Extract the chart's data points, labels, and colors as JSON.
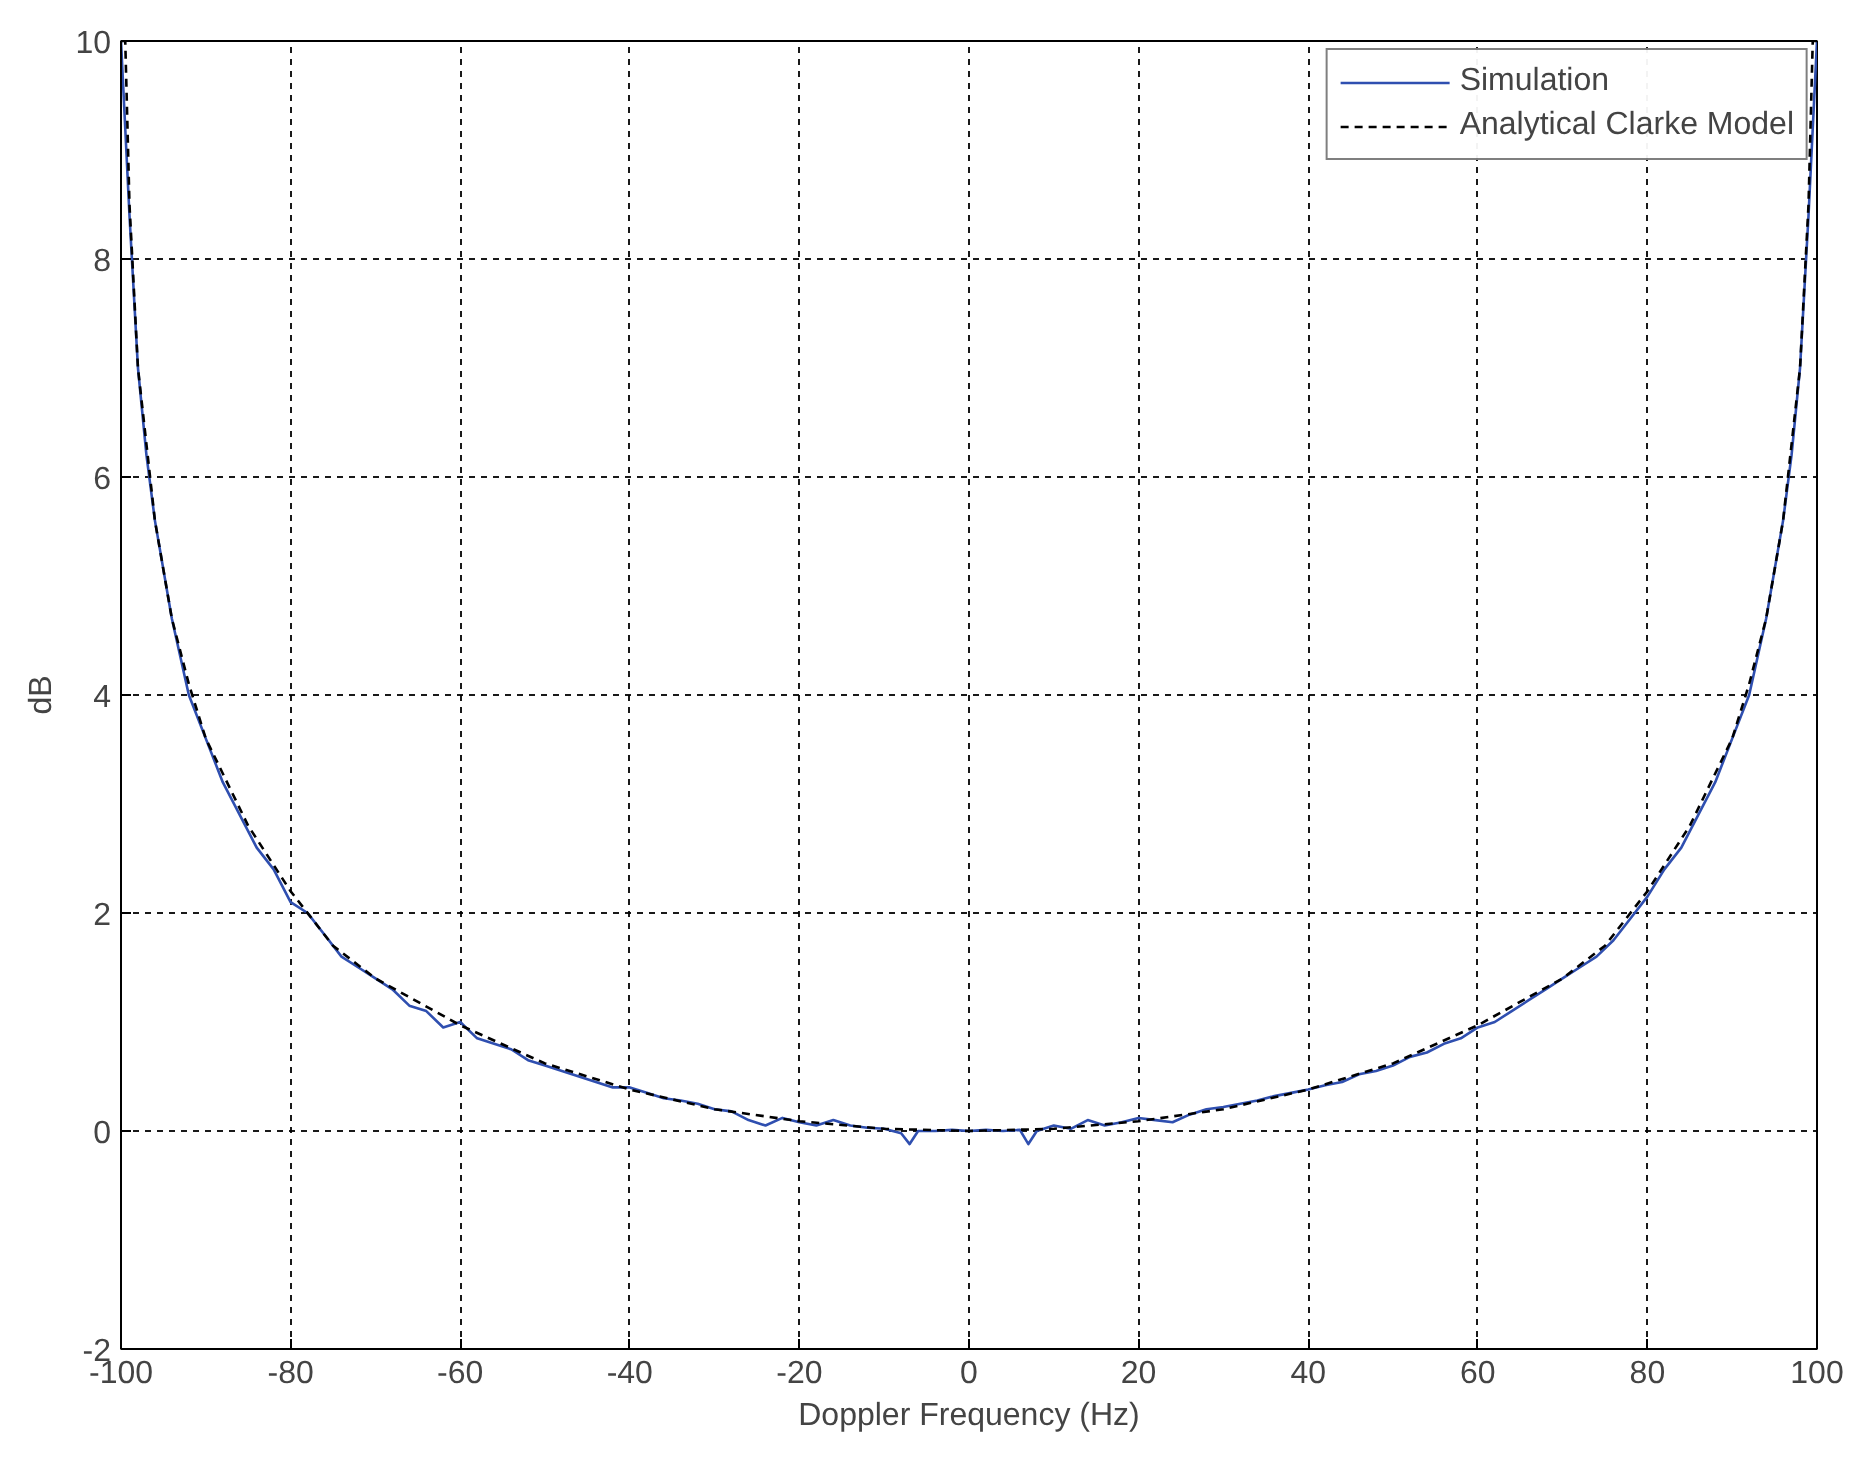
{
  "chart_data": {
    "type": "line",
    "xlabel": "Doppler Frequency (Hz)",
    "ylabel": "dB",
    "xlim": [
      -100,
      100
    ],
    "ylim": [
      -2,
      10
    ],
    "xticks": [
      -100,
      -80,
      -60,
      -40,
      -20,
      0,
      20,
      40,
      60,
      80,
      100
    ],
    "yticks": [
      -2,
      0,
      2,
      4,
      6,
      8,
      10
    ],
    "grid": true,
    "legend": "top right",
    "marker": "none",
    "series": [
      {
        "name": "Simulation",
        "color": "#2f4fb0",
        "line_style": "solid",
        "x": [
          -100,
          -99.5,
          -99,
          -98,
          -97,
          -96,
          -94,
          -92,
          -90,
          -88,
          -86,
          -84,
          -82,
          -80,
          -78,
          -76,
          -74,
          -72,
          -70,
          -68,
          -66,
          -64,
          -62,
          -60,
          -58,
          -56,
          -54,
          -52,
          -50,
          -48,
          -46,
          -44,
          -42,
          -40,
          -38,
          -36,
          -34,
          -32,
          -30,
          -28,
          -26,
          -24,
          -22,
          -20,
          -18,
          -16,
          -14,
          -12,
          -10,
          -8,
          -7,
          -6,
          -4,
          -2,
          0,
          2,
          4,
          6,
          7,
          8,
          10,
          12,
          14,
          16,
          18,
          20,
          22,
          24,
          26,
          28,
          30,
          32,
          34,
          36,
          38,
          40,
          42,
          44,
          46,
          48,
          50,
          52,
          54,
          56,
          58,
          60,
          62,
          64,
          66,
          68,
          70,
          72,
          74,
          76,
          78,
          80,
          82,
          84,
          86,
          88,
          90,
          92,
          94,
          96,
          97,
          98,
          99,
          99.5,
          100
        ],
        "values": [
          10,
          9.2,
          8.4,
          7.0,
          6.2,
          5.6,
          4.7,
          4.0,
          3.6,
          3.2,
          2.9,
          2.6,
          2.4,
          2.1,
          2.0,
          1.8,
          1.6,
          1.5,
          1.4,
          1.3,
          1.15,
          1.1,
          0.95,
          1.0,
          0.85,
          0.8,
          0.75,
          0.65,
          0.6,
          0.55,
          0.5,
          0.45,
          0.4,
          0.4,
          0.35,
          0.3,
          0.28,
          0.25,
          0.2,
          0.18,
          0.1,
          0.05,
          0.12,
          0.08,
          0.05,
          0.1,
          0.05,
          0.03,
          0.02,
          -0.02,
          -0.12,
          0.0,
          0.0,
          0.01,
          0.0,
          0.01,
          0.0,
          0.01,
          -0.12,
          0.0,
          0.05,
          0.02,
          0.1,
          0.05,
          0.08,
          0.12,
          0.1,
          0.08,
          0.15,
          0.2,
          0.22,
          0.25,
          0.28,
          0.32,
          0.35,
          0.38,
          0.42,
          0.45,
          0.52,
          0.55,
          0.6,
          0.68,
          0.72,
          0.8,
          0.85,
          0.95,
          1.0,
          1.1,
          1.2,
          1.3,
          1.4,
          1.5,
          1.6,
          1.75,
          1.95,
          2.15,
          2.4,
          2.6,
          2.9,
          3.2,
          3.6,
          4.0,
          4.7,
          5.6,
          6.2,
          7.0,
          8.4,
          9.2,
          10
        ]
      },
      {
        "name": "Analytical Clarke Model",
        "color": "#000000",
        "line_style": "dashed",
        "x": [
          -100,
          -99.5,
          -99,
          -98,
          -96,
          -94,
          -92,
          -90,
          -85,
          -80,
          -75,
          -70,
          -60,
          -50,
          -40,
          -30,
          -20,
          -10,
          0,
          10,
          20,
          30,
          40,
          50,
          60,
          70,
          75,
          80,
          85,
          90,
          92,
          94,
          96,
          98,
          99,
          99.5,
          100
        ],
        "values": [
          10,
          10,
          8.5,
          7.0,
          5.6,
          4.7,
          4.1,
          3.6,
          2.8,
          2.2,
          1.7,
          1.4,
          0.97,
          0.62,
          0.38,
          0.2,
          0.09,
          0.02,
          0,
          0.02,
          0.09,
          0.2,
          0.38,
          0.62,
          0.97,
          1.4,
          1.7,
          2.2,
          2.8,
          3.6,
          4.1,
          4.7,
          5.6,
          7.0,
          8.5,
          10,
          10
        ]
      }
    ]
  }
}
